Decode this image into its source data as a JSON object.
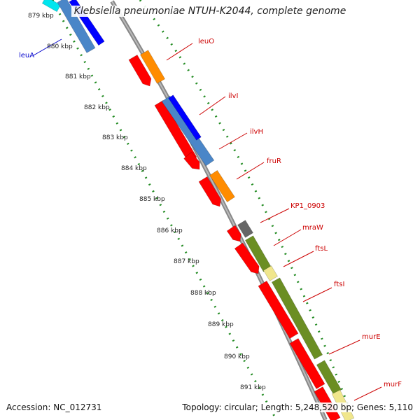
{
  "title": "Klebsiella pneumoniae NTUH-K2044, complete genome",
  "accession": "Accession: NC_012731",
  "summary": "Topology: circular; Length: 5,248,520 bp; Genes: 5,110",
  "colors": {
    "forward_cds": "#ff0000",
    "reverse_blue": "#0000ff",
    "reverse_steel": "#4a86c8",
    "orange": "#ff8c00",
    "olive": "#6b8e23",
    "pale": "#f0e68c",
    "gray": "#666666",
    "cyan": "#00e5ee",
    "tick": "#228b22",
    "label_red": "#cc0000",
    "label_blue": "#0000cc"
  },
  "scale_ticks": [
    {
      "label": "879 kbp"
    },
    {
      "label": "880 kbp"
    },
    {
      "label": "881 kbp"
    },
    {
      "label": "882 kbp"
    },
    {
      "label": "883 kbp"
    },
    {
      "label": "884 kbp"
    },
    {
      "label": "885 kbp"
    },
    {
      "label": "886 kbp"
    },
    {
      "label": "887 kbp"
    },
    {
      "label": "888 kbp"
    },
    {
      "label": "889 kbp"
    },
    {
      "label": "890 kbp"
    },
    {
      "label": "891 kbp"
    }
  ],
  "gene_labels": [
    {
      "text": "leuA",
      "color": "#0000cc"
    },
    {
      "text": "leuO",
      "color": "#cc0000"
    },
    {
      "text": "ilvI",
      "color": "#cc0000"
    },
    {
      "text": "ilvH",
      "color": "#cc0000"
    },
    {
      "text": "fruR",
      "color": "#cc0000"
    },
    {
      "text": "KP1_0903",
      "color": "#cc0000"
    },
    {
      "text": "mraW",
      "color": "#cc0000"
    },
    {
      "text": "ftsL",
      "color": "#cc0000"
    },
    {
      "text": "ftsI",
      "color": "#cc0000"
    },
    {
      "text": "murE",
      "color": "#cc0000"
    },
    {
      "text": "murF",
      "color": "#cc0000"
    }
  ]
}
